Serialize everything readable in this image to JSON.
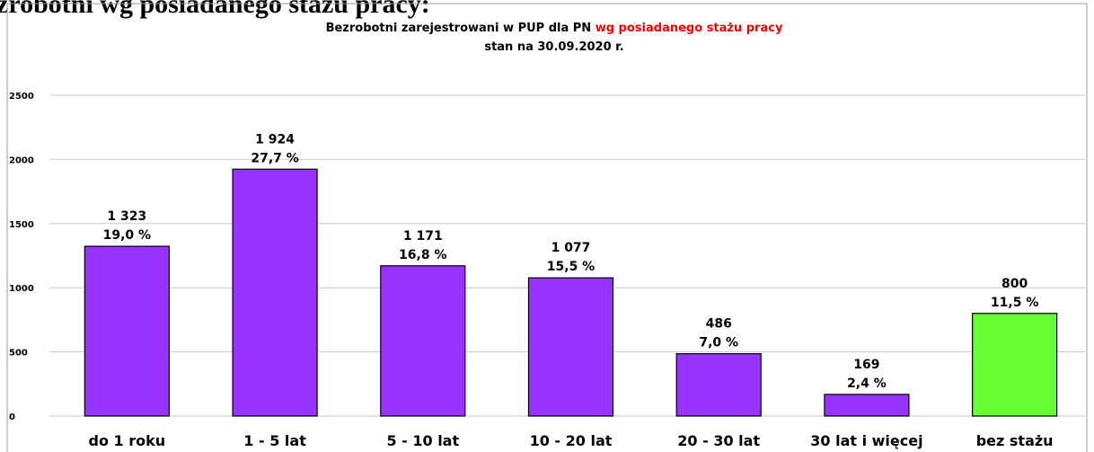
{
  "heading": "zrobotni wg posiadanego stażu pracy:",
  "chart_data": {
    "type": "bar",
    "title": "Bezrobotni zarejestrowani w PUP dla PN",
    "title_highlight": "wg posiadanego stażu pracy",
    "subtitle": "stan na 30.09.2020 r.",
    "categories": [
      "do 1 roku",
      "1 - 5 lat",
      "5 - 10 lat",
      "10 - 20 lat",
      "20 - 30 lat",
      "30 lat i więcej",
      "bez stażu"
    ],
    "values": [
      1323,
      1924,
      1171,
      1077,
      486,
      169,
      800
    ],
    "value_labels": [
      "1 323",
      "1 924",
      "1 171",
      "1 077",
      "486",
      "169",
      "800"
    ],
    "percents": [
      19.0,
      27.7,
      16.8,
      15.5,
      7.0,
      2.4,
      11.5
    ],
    "percent_labels": [
      "19,0 %",
      "27,7 %",
      "16,8 %",
      "15,5 %",
      "7,0 %",
      "2,4 %",
      "11,5 %"
    ],
    "colors": [
      "#9933ff",
      "#9933ff",
      "#9933ff",
      "#9933ff",
      "#9933ff",
      "#9933ff",
      "#66ff33"
    ],
    "ylim": [
      0,
      2500
    ],
    "yticks": [
      0,
      500,
      1000,
      1500,
      2000,
      2500
    ],
    "grid": true
  }
}
